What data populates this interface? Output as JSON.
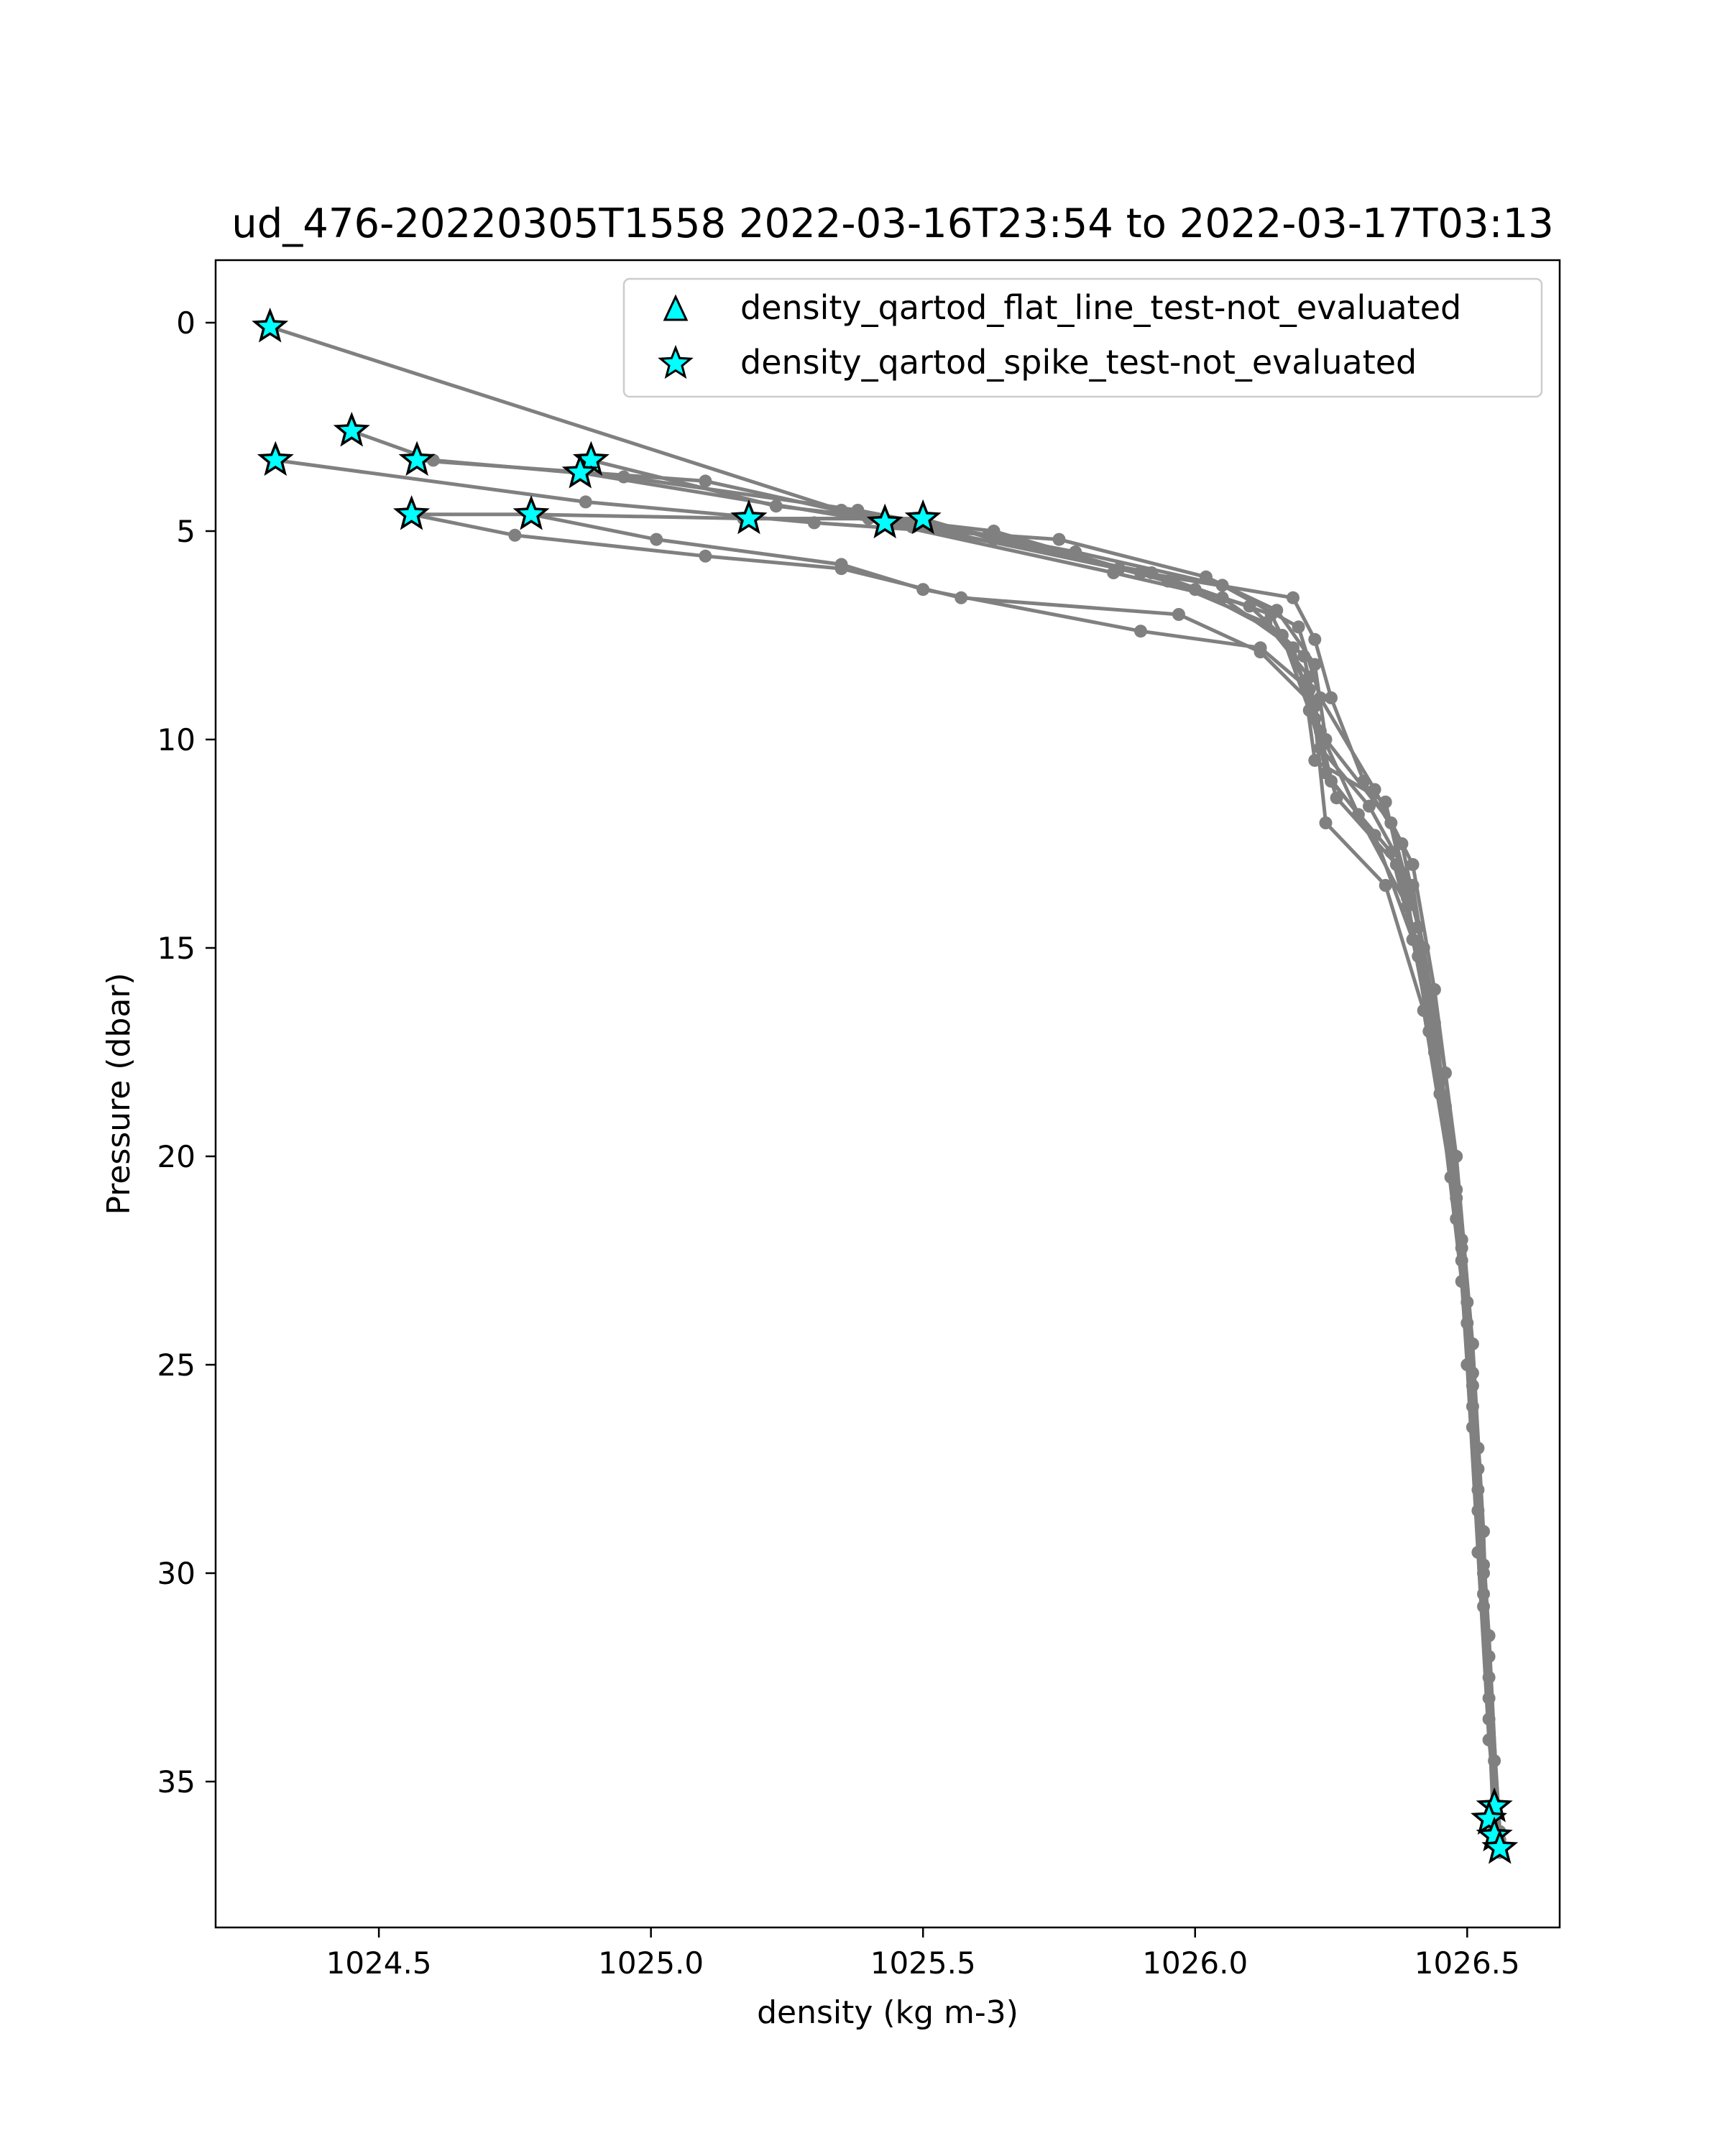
{
  "chart_data": {
    "type": "line",
    "title": "ud_476-20220305T1558 2022-03-16T23:54 to 2022-03-17T03:13",
    "xlabel": "density (kg m-3)",
    "ylabel": "Pressure (dbar)",
    "xlim": [
      1024.2,
      1026.67
    ],
    "ylim": [
      38.5,
      -1.5
    ],
    "y_inverted": true,
    "grid": false,
    "legend_position": "top-right",
    "xticks": [
      {
        "value": 1024.5,
        "label": "1024.5"
      },
      {
        "value": 1025.0,
        "label": "1025.0"
      },
      {
        "value": 1025.5,
        "label": "1025.5"
      },
      {
        "value": 1026.0,
        "label": "1026.0"
      },
      {
        "value": 1026.5,
        "label": "1026.5"
      }
    ],
    "yticks": [
      {
        "value": 0,
        "label": "0"
      },
      {
        "value": 5,
        "label": "5"
      },
      {
        "value": 10,
        "label": "10"
      },
      {
        "value": 15,
        "label": "15"
      },
      {
        "value": 20,
        "label": "20"
      },
      {
        "value": 25,
        "label": "25"
      },
      {
        "value": 30,
        "label": "30"
      },
      {
        "value": 35,
        "label": "35"
      }
    ],
    "line_color": "#808080",
    "marker_color": "#00ffff",
    "legend": [
      {
        "label": "density_qartod_flat_line_test-not_evaluated",
        "marker": "triangle"
      },
      {
        "label": "density_qartod_spike_test-not_evaluated",
        "marker": "star"
      }
    ],
    "profiles": [
      [
        [
          1024.3,
          0.1
        ],
        [
          1025.35,
          4.5
        ],
        [
          1025.86,
          5.9
        ],
        [
          1026.18,
          6.6
        ],
        [
          1026.22,
          7.6
        ],
        [
          1026.25,
          9.0
        ],
        [
          1026.31,
          11.0
        ],
        [
          1026.38,
          12.5
        ],
        [
          1026.42,
          15.0
        ],
        [
          1026.46,
          18.0
        ],
        [
          1026.49,
          22.0
        ],
        [
          1026.51,
          26.0
        ],
        [
          1026.53,
          30.0
        ],
        [
          1026.55,
          35.7
        ]
      ],
      [
        [
          1024.45,
          2.6
        ],
        [
          1024.6,
          3.3
        ],
        [
          1024.95,
          3.7
        ],
        [
          1025.38,
          4.5
        ],
        [
          1025.78,
          5.5
        ],
        [
          1026.05,
          6.3
        ],
        [
          1026.19,
          7.3
        ],
        [
          1026.23,
          9.0
        ],
        [
          1026.33,
          11.2
        ],
        [
          1026.4,
          13.0
        ],
        [
          1026.44,
          16.0
        ],
        [
          1026.48,
          20.0
        ],
        [
          1026.51,
          24.5
        ],
        [
          1026.53,
          29.0
        ],
        [
          1026.54,
          33.0
        ],
        [
          1026.55,
          35.9
        ]
      ],
      [
        [
          1024.31,
          3.3
        ],
        [
          1024.88,
          4.3
        ],
        [
          1025.3,
          4.8
        ],
        [
          1025.75,
          5.2
        ],
        [
          1026.02,
          6.1
        ],
        [
          1026.15,
          6.9
        ],
        [
          1026.22,
          8.2
        ],
        [
          1026.24,
          10.0
        ],
        [
          1026.36,
          12.0
        ],
        [
          1026.41,
          14.5
        ],
        [
          1026.45,
          18.5
        ],
        [
          1026.49,
          23.0
        ],
        [
          1026.52,
          28.0
        ],
        [
          1026.54,
          32.5
        ],
        [
          1026.55,
          36.1
        ]
      ],
      [
        [
          1024.57,
          3.3
        ],
        [
          1025.1,
          3.8
        ],
        [
          1025.48,
          4.9
        ],
        [
          1025.92,
          6.0
        ],
        [
          1026.14,
          7.0
        ],
        [
          1026.2,
          8.6
        ],
        [
          1026.22,
          10.5
        ],
        [
          1026.35,
          11.5
        ],
        [
          1026.39,
          13.8
        ],
        [
          1026.43,
          17.0
        ],
        [
          1026.48,
          21.0
        ],
        [
          1026.5,
          25.0
        ],
        [
          1026.52,
          29.5
        ],
        [
          1026.54,
          34.0
        ],
        [
          1026.56,
          36.4
        ]
      ],
      [
        [
          1024.89,
          3.3
        ],
        [
          1025.23,
          4.4
        ],
        [
          1025.63,
          5.0
        ],
        [
          1026.0,
          6.4
        ],
        [
          1026.16,
          7.5
        ],
        [
          1026.21,
          9.3
        ],
        [
          1026.26,
          11.4
        ],
        [
          1026.37,
          13.0
        ],
        [
          1026.42,
          15.5
        ],
        [
          1026.46,
          19.0
        ],
        [
          1026.5,
          23.5
        ],
        [
          1026.52,
          27.5
        ],
        [
          1026.54,
          31.5
        ],
        [
          1026.56,
          36.6
        ]
      ],
      [
        [
          1024.87,
          3.6
        ],
        [
          1025.43,
          4.8
        ],
        [
          1025.85,
          6.0
        ],
        [
          1026.05,
          6.6
        ],
        [
          1026.18,
          7.8
        ],
        [
          1026.22,
          9.5
        ],
        [
          1026.24,
          12.0
        ],
        [
          1026.35,
          13.5
        ],
        [
          1026.42,
          16.5
        ],
        [
          1026.47,
          20.5
        ],
        [
          1026.5,
          24.0
        ],
        [
          1026.52,
          28.5
        ],
        [
          1026.54,
          33.5
        ],
        [
          1026.55,
          36.5
        ]
      ],
      [
        [
          1024.56,
          4.6
        ],
        [
          1024.78,
          4.6
        ],
        [
          1025.18,
          4.7
        ],
        [
          1025.5,
          4.7
        ],
        [
          1025.63,
          5.2
        ],
        [
          1025.9,
          6.0
        ],
        [
          1026.1,
          6.8
        ],
        [
          1026.2,
          8.0
        ],
        [
          1026.23,
          9.8
        ],
        [
          1026.3,
          11.8
        ],
        [
          1026.39,
          14.0
        ],
        [
          1026.44,
          17.5
        ],
        [
          1026.48,
          21.5
        ],
        [
          1026.51,
          25.5
        ],
        [
          1026.53,
          30.5
        ],
        [
          1026.55,
          35.8
        ]
      ],
      [
        [
          1024.56,
          4.6
        ],
        [
          1024.75,
          5.1
        ],
        [
          1025.1,
          5.6
        ],
        [
          1025.35,
          5.9
        ],
        [
          1025.57,
          6.6
        ],
        [
          1025.97,
          7.0
        ],
        [
          1026.12,
          7.9
        ],
        [
          1026.22,
          9.2
        ],
        [
          1026.25,
          11.0
        ],
        [
          1026.36,
          12.7
        ],
        [
          1026.41,
          15.2
        ],
        [
          1026.46,
          18.8
        ],
        [
          1026.49,
          22.5
        ],
        [
          1026.52,
          27.0
        ],
        [
          1026.54,
          32.0
        ],
        [
          1026.56,
          36.2
        ]
      ],
      [
        [
          1024.78,
          4.6
        ],
        [
          1025.01,
          5.2
        ],
        [
          1025.35,
          5.8
        ],
        [
          1025.5,
          6.4
        ],
        [
          1025.9,
          7.4
        ],
        [
          1026.12,
          7.8
        ],
        [
          1026.21,
          8.8
        ],
        [
          1026.24,
          10.8
        ],
        [
          1026.33,
          12.3
        ],
        [
          1026.4,
          14.8
        ],
        [
          1026.45,
          18.2
        ],
        [
          1026.49,
          22.2
        ],
        [
          1026.51,
          26.5
        ],
        [
          1026.53,
          30.8
        ],
        [
          1026.55,
          35.6
        ]
      ],
      [
        [
          1025.17,
          4.7
        ],
        [
          1025.4,
          4.7
        ],
        [
          1025.62,
          5.1
        ],
        [
          1025.95,
          6.2
        ],
        [
          1026.13,
          7.2
        ],
        [
          1026.21,
          8.5
        ],
        [
          1026.23,
          10.2
        ],
        [
          1026.32,
          11.6
        ],
        [
          1026.4,
          13.5
        ],
        [
          1026.44,
          16.8
        ],
        [
          1026.48,
          20.8
        ],
        [
          1026.51,
          25.2
        ],
        [
          1026.53,
          29.8
        ],
        [
          1026.55,
          34.5
        ],
        [
          1026.56,
          36.7
        ]
      ]
    ],
    "flagged_points": [
      [
        1024.3,
        0.1
      ],
      [
        1024.45,
        2.6
      ],
      [
        1024.31,
        3.3
      ],
      [
        1024.57,
        3.3
      ],
      [
        1024.89,
        3.3
      ],
      [
        1024.87,
        3.6
      ],
      [
        1024.56,
        4.6
      ],
      [
        1024.78,
        4.6
      ],
      [
        1025.18,
        4.7
      ],
      [
        1025.43,
        4.8
      ],
      [
        1025.5,
        4.7
      ],
      [
        1026.55,
        35.6
      ],
      [
        1026.54,
        35.9
      ],
      [
        1026.55,
        36.3
      ],
      [
        1026.56,
        36.6
      ]
    ]
  }
}
